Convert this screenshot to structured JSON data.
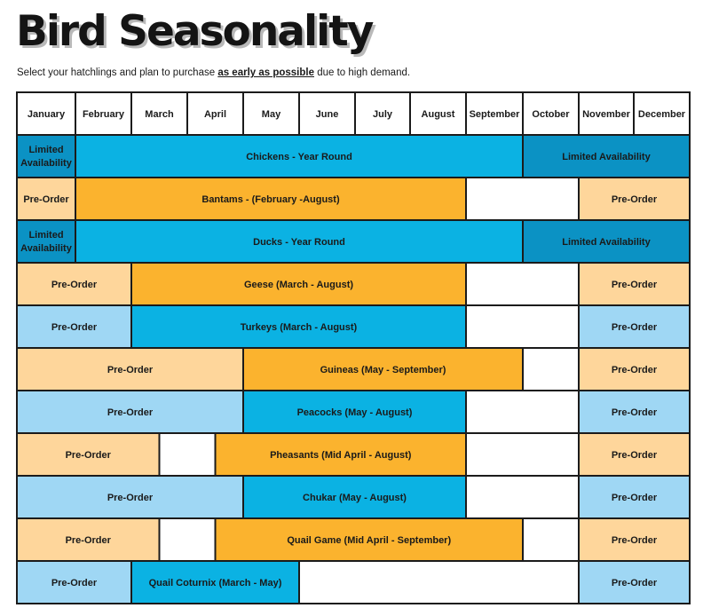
{
  "title": "Bird Seasonality",
  "subtitle": {
    "before": "Select your hatchlings and plan to purchase ",
    "emphasis": "as early as possible",
    "after": " due to high demand."
  },
  "colors": {
    "blue_available": "#0bb2e3",
    "blue_limited": "#0b92c4",
    "blue_preorder": "#9fd7f4",
    "orange_available": "#fbb32e",
    "orange_preorder": "#fed69b",
    "border": "#1b1b1b"
  },
  "chart_data": {
    "type": "table",
    "months": [
      "January",
      "February",
      "March",
      "April",
      "May",
      "June",
      "July",
      "August",
      "September",
      "October",
      "November",
      "December"
    ],
    "rows": [
      {
        "bird": "Chickens",
        "segments": [
          {
            "start": 1,
            "end": 1,
            "label": "Limited Availability",
            "lines": [
              "Limited",
              "Availability"
            ],
            "color": "#0b92c4"
          },
          {
            "start": 2,
            "end": 9,
            "label": "Chickens - Year Round",
            "color": "#0bb2e3"
          },
          {
            "start": 10,
            "end": 12,
            "label": "Limited Availability",
            "color": "#0b92c4"
          }
        ]
      },
      {
        "bird": "Bantams",
        "segments": [
          {
            "start": 1,
            "end": 1,
            "label": "Pre-Order",
            "color": "#fed69b"
          },
          {
            "start": 2,
            "end": 8,
            "label": "Bantams - (February -August)",
            "color": "#fbb32e"
          },
          {
            "start": 11,
            "end": 12,
            "label": "Pre-Order",
            "color": "#fed69b"
          }
        ]
      },
      {
        "bird": "Ducks",
        "segments": [
          {
            "start": 1,
            "end": 1,
            "label": "Limited Availability",
            "lines": [
              "Limited",
              "Availability"
            ],
            "color": "#0b92c4"
          },
          {
            "start": 2,
            "end": 9,
            "label": "Ducks - Year Round",
            "color": "#0bb2e3"
          },
          {
            "start": 10,
            "end": 12,
            "label": "Limited Availability",
            "color": "#0b92c4"
          }
        ]
      },
      {
        "bird": "Geese",
        "segments": [
          {
            "start": 1,
            "end": 2,
            "label": "Pre-Order",
            "color": "#fed69b"
          },
          {
            "start": 3,
            "end": 8,
            "label": "Geese (March - August)",
            "color": "#fbb32e"
          },
          {
            "start": 11,
            "end": 12,
            "label": "Pre-Order",
            "color": "#fed69b"
          }
        ]
      },
      {
        "bird": "Turkeys",
        "segments": [
          {
            "start": 1,
            "end": 2,
            "label": "Pre-Order",
            "color": "#9fd7f4"
          },
          {
            "start": 3,
            "end": 8,
            "label": "Turkeys (March - August)",
            "color": "#0bb2e3"
          },
          {
            "start": 11,
            "end": 12,
            "label": "Pre-Order",
            "color": "#9fd7f4"
          }
        ]
      },
      {
        "bird": "Guineas",
        "segments": [
          {
            "start": 1,
            "end": 4,
            "label": "Pre-Order",
            "color": "#fed69b"
          },
          {
            "start": 5,
            "end": 9,
            "label": "Guineas (May - September)",
            "color": "#fbb32e"
          },
          {
            "start": 11,
            "end": 12,
            "label": "Pre-Order",
            "color": "#fed69b"
          }
        ]
      },
      {
        "bird": "Peacocks",
        "segments": [
          {
            "start": 1,
            "end": 4,
            "label": "Pre-Order",
            "color": "#9fd7f4"
          },
          {
            "start": 5,
            "end": 8,
            "label": "Peacocks (May - August)",
            "color": "#0bb2e3"
          },
          {
            "start": 11,
            "end": 12,
            "label": "Pre-Order",
            "color": "#9fd7f4"
          }
        ]
      },
      {
        "bird": "Pheasants",
        "segments": [
          {
            "start": 1,
            "end": 3,
            "label": "Pre-Order",
            "color": "#fed69b",
            "end_mid": true
          },
          {
            "start": 4,
            "end": 8,
            "label": "Pheasants (Mid April - August)",
            "color": "#fbb32e",
            "start_mid": true
          },
          {
            "start": 11,
            "end": 12,
            "label": "Pre-Order",
            "color": "#fed69b"
          }
        ]
      },
      {
        "bird": "Chukar",
        "segments": [
          {
            "start": 1,
            "end": 4,
            "label": "Pre-Order",
            "color": "#9fd7f4"
          },
          {
            "start": 5,
            "end": 8,
            "label": "Chukar (May - August)",
            "color": "#0bb2e3"
          },
          {
            "start": 11,
            "end": 12,
            "label": "Pre-Order",
            "color": "#9fd7f4"
          }
        ]
      },
      {
        "bird": "Quail Game",
        "segments": [
          {
            "start": 1,
            "end": 3,
            "label": "Pre-Order",
            "color": "#fed69b",
            "end_mid": true
          },
          {
            "start": 4,
            "end": 9,
            "label": "Quail Game (Mid April - September)",
            "color": "#fbb32e",
            "start_mid": true
          },
          {
            "start": 11,
            "end": 12,
            "label": "Pre-Order",
            "color": "#fed69b"
          }
        ]
      },
      {
        "bird": "Quail Coturnix",
        "segments": [
          {
            "start": 1,
            "end": 2,
            "label": "Pre-Order",
            "color": "#9fd7f4"
          },
          {
            "start": 3,
            "end": 5,
            "label": "Quail Coturnix (March - May)",
            "color": "#0bb2e3"
          },
          {
            "start": 11,
            "end": 12,
            "label": "Pre-Order",
            "color": "#9fd7f4"
          }
        ]
      }
    ]
  }
}
